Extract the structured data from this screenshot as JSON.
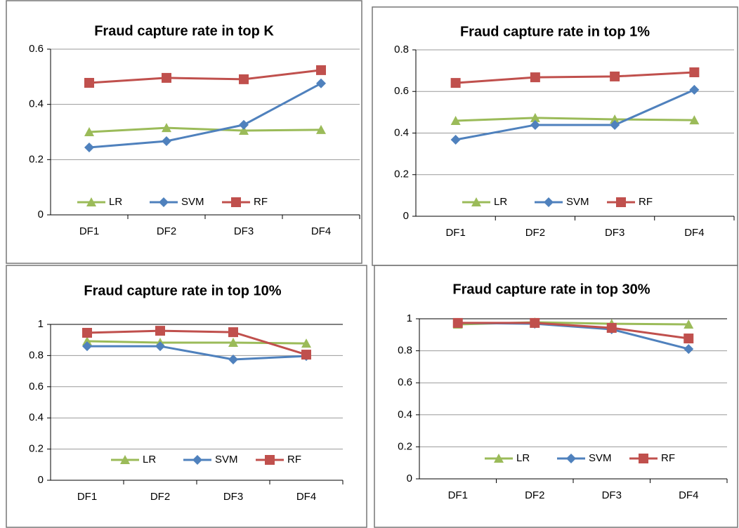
{
  "chart_data": [
    {
      "type": "line",
      "title": "Fraud capture rate in top K",
      "categories": [
        "DF1",
        "DF2",
        "DF3",
        "DF4"
      ],
      "series": [
        {
          "name": "LR",
          "color": "#9bbb59",
          "values": [
            0.3,
            0.315,
            0.305,
            0.308
          ]
        },
        {
          "name": "SVM",
          "color": "#4f81bd",
          "values": [
            0.244,
            0.267,
            0.326,
            0.476
          ]
        },
        {
          "name": "RF",
          "color": "#c0504d",
          "values": [
            0.478,
            0.496,
            0.491,
            0.524
          ]
        }
      ],
      "ylim": [
        0,
        0.6
      ],
      "yticks": [
        0,
        0.2,
        0.4,
        0.6
      ],
      "grid": true,
      "legend": "bottom"
    },
    {
      "type": "line",
      "title": "Fraud capture rate in top 1%",
      "categories": [
        "DF1",
        "DF2",
        "DF3",
        "DF4"
      ],
      "series": [
        {
          "name": "LR",
          "color": "#9bbb59",
          "values": [
            0.459,
            0.473,
            0.466,
            0.462
          ]
        },
        {
          "name": "SVM",
          "color": "#4f81bd",
          "values": [
            0.368,
            0.439,
            0.439,
            0.608
          ]
        },
        {
          "name": "RF",
          "color": "#c0504d",
          "values": [
            0.641,
            0.668,
            0.672,
            0.692
          ]
        }
      ],
      "ylim": [
        0,
        0.8
      ],
      "yticks": [
        0,
        0.2,
        0.4,
        0.6,
        0.8
      ],
      "grid": true,
      "legend": "bottom"
    },
    {
      "type": "line",
      "title": "Fraud capture rate in top 10%",
      "categories": [
        "DF1",
        "DF2",
        "DF3",
        "DF4"
      ],
      "series": [
        {
          "name": "LR",
          "color": "#9bbb59",
          "values": [
            0.892,
            0.883,
            0.883,
            0.878
          ]
        },
        {
          "name": "SVM",
          "color": "#4f81bd",
          "values": [
            0.86,
            0.86,
            0.775,
            0.797
          ]
        },
        {
          "name": "RF",
          "color": "#c0504d",
          "values": [
            0.946,
            0.959,
            0.95,
            0.806
          ]
        }
      ],
      "ylim": [
        0,
        1
      ],
      "yticks": [
        0,
        0.2,
        0.4,
        0.6,
        0.8,
        1
      ],
      "grid": true,
      "legend": "bottom"
    },
    {
      "type": "line",
      "title": "Fraud capture rate in top 30%",
      "categories": [
        "DF1",
        "DF2",
        "DF3",
        "DF4"
      ],
      "series": [
        {
          "name": "LR",
          "color": "#9bbb59",
          "values": [
            0.965,
            0.978,
            0.969,
            0.965
          ]
        },
        {
          "name": "SVM",
          "color": "#4f81bd",
          "values": [
            0.974,
            0.969,
            0.934,
            0.811
          ]
        },
        {
          "name": "RF",
          "color": "#c0504d",
          "values": [
            0.974,
            0.974,
            0.943,
            0.877
          ]
        }
      ],
      "ylim": [
        0,
        1
      ],
      "yticks": [
        0,
        0.2,
        0.4,
        0.6,
        0.8,
        1
      ],
      "grid": true,
      "legend": "bottom"
    }
  ]
}
